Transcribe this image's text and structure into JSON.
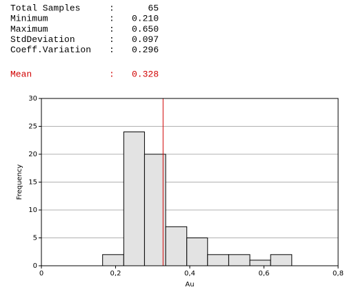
{
  "stats": {
    "separator": ":",
    "rows": [
      {
        "label": "Total Samples",
        "value": 65
      },
      {
        "label": "Minimum",
        "value": 0.21,
        "value_label": "0.210"
      },
      {
        "label": "Maximum",
        "value": 0.65,
        "value_label": "0.650"
      },
      {
        "label": "StdDeviation",
        "value": 0.097
      },
      {
        "label": "Coeff.Variation",
        "value": 0.296
      },
      {
        "label": "Mean",
        "value": 0.328
      }
    ]
  },
  "chart_data": {
    "type": "histogram",
    "x_label": "Au",
    "y_label": "Frequency",
    "bins": [
      0.165,
      0.222,
      0.278,
      0.335,
      0.392,
      0.448,
      0.505,
      0.562,
      0.618,
      0.675
    ],
    "values": [
      2,
      24,
      20,
      7,
      5,
      2,
      2,
      1,
      2
    ],
    "color": "#e3e3e3",
    "mean_color": "#d00000",
    "xlim": [
      0,
      0.8
    ],
    "xticks": [
      0,
      {
        "value": 0.2,
        "label": "0,2"
      },
      {
        "value": 0.4,
        "label": "0,4"
      },
      {
        "value": 0.6,
        "label": "0,6"
      },
      {
        "value": 0.8,
        "label": "0,8"
      }
    ],
    "ylim": [
      0,
      30
    ],
    "yticks": [
      0,
      5,
      10,
      15,
      20,
      25,
      30
    ],
    "grid": true
  }
}
